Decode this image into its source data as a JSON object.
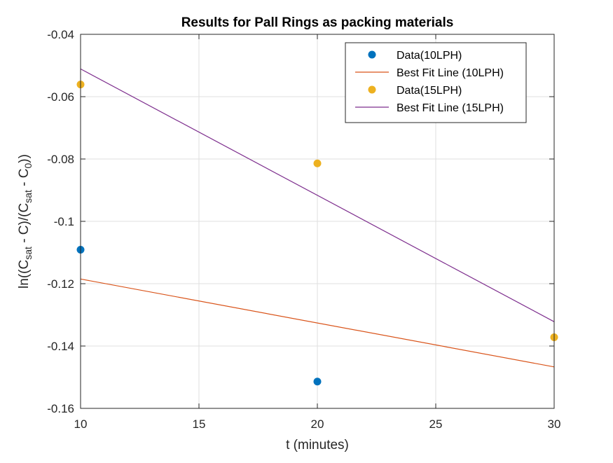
{
  "chart_data": {
    "type": "scatter",
    "title": "Results for Pall Rings as packing materials",
    "xlabel": "t (minutes)",
    "ylabel": {
      "parts": [
        "ln((C",
        "sat",
        " - C)/(C",
        "sat",
        " - C",
        "0",
        "))"
      ],
      "subscripts": [
        false,
        true,
        false,
        true,
        false,
        true,
        false
      ]
    },
    "xlim": [
      10,
      30
    ],
    "ylim": [
      -0.16,
      -0.04
    ],
    "xticks": [
      10,
      15,
      20,
      25,
      30
    ],
    "xtick_labels": [
      "10",
      "15",
      "20",
      "25",
      "30"
    ],
    "yticks": [
      -0.16,
      -0.14,
      -0.12,
      -0.1,
      -0.08,
      -0.06,
      -0.04
    ],
    "ytick_labels": [
      "-0.16",
      "-0.14",
      "-0.12",
      "-0.1",
      "-0.08",
      "-0.06",
      "-0.04"
    ],
    "grid": true,
    "legend_position": "top-right",
    "series": [
      {
        "name": "Data(10LPH)",
        "kind": "markers",
        "color": "#0072BD",
        "x": [
          10,
          20
        ],
        "y": [
          -0.1091,
          -0.1514
        ]
      },
      {
        "name": "Best Fit Line (10LPH)",
        "kind": "line",
        "color": "#D95319",
        "x": [
          10,
          30
        ],
        "y": [
          -0.1185,
          -0.1467
        ]
      },
      {
        "name": "Data(15LPH)",
        "kind": "markers",
        "color": "#EDB120",
        "x": [
          10,
          20,
          30
        ],
        "y": [
          -0.0561,
          -0.0814,
          -0.1372
        ]
      },
      {
        "name": "Best Fit Line (15LPH)",
        "kind": "line",
        "color": "#7E2F8E",
        "x": [
          10,
          30
        ],
        "y": [
          -0.0511,
          -0.1322
        ]
      }
    ]
  }
}
